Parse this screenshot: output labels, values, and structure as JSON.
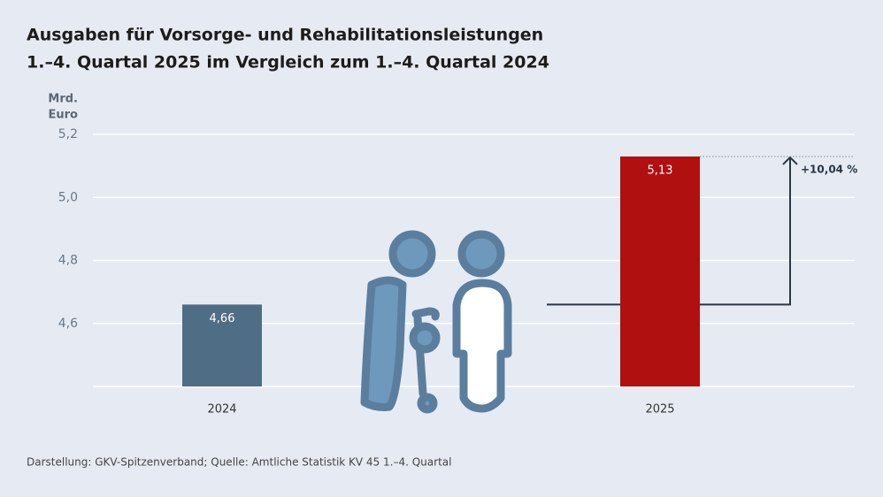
{
  "chart_data": {
    "type": "bar",
    "title": [
      "Ausgaben für Vorsorge- und Rehabilitationsleistungen",
      "1.–4. Quartal 2025 im Vergleich zum 1.–4. Quartal 2024"
    ],
    "y_label": [
      "Mrd.",
      "Euro"
    ],
    "categories": [
      "2024",
      "2025"
    ],
    "values": [
      4.66,
      5.13
    ],
    "value_labels": [
      "4,66",
      "5,13"
    ],
    "colors": [
      "#4f6d85",
      "#b01010"
    ],
    "ylim": [
      4.4,
      5.2
    ],
    "yticks": [
      {
        "value": 4.6,
        "label": "4,6"
      },
      {
        "value": 4.8,
        "label": "4,8"
      },
      {
        "value": 5.0,
        "label": "5,0"
      },
      {
        "value": 5.2,
        "label": "5,2"
      }
    ],
    "grid": true,
    "annotation": "+10,04 %",
    "source": "Darstellung: GKV-Spitzenverband; Quelle: Amtliche Statistik KV 45 1.–4. Quartal"
  }
}
